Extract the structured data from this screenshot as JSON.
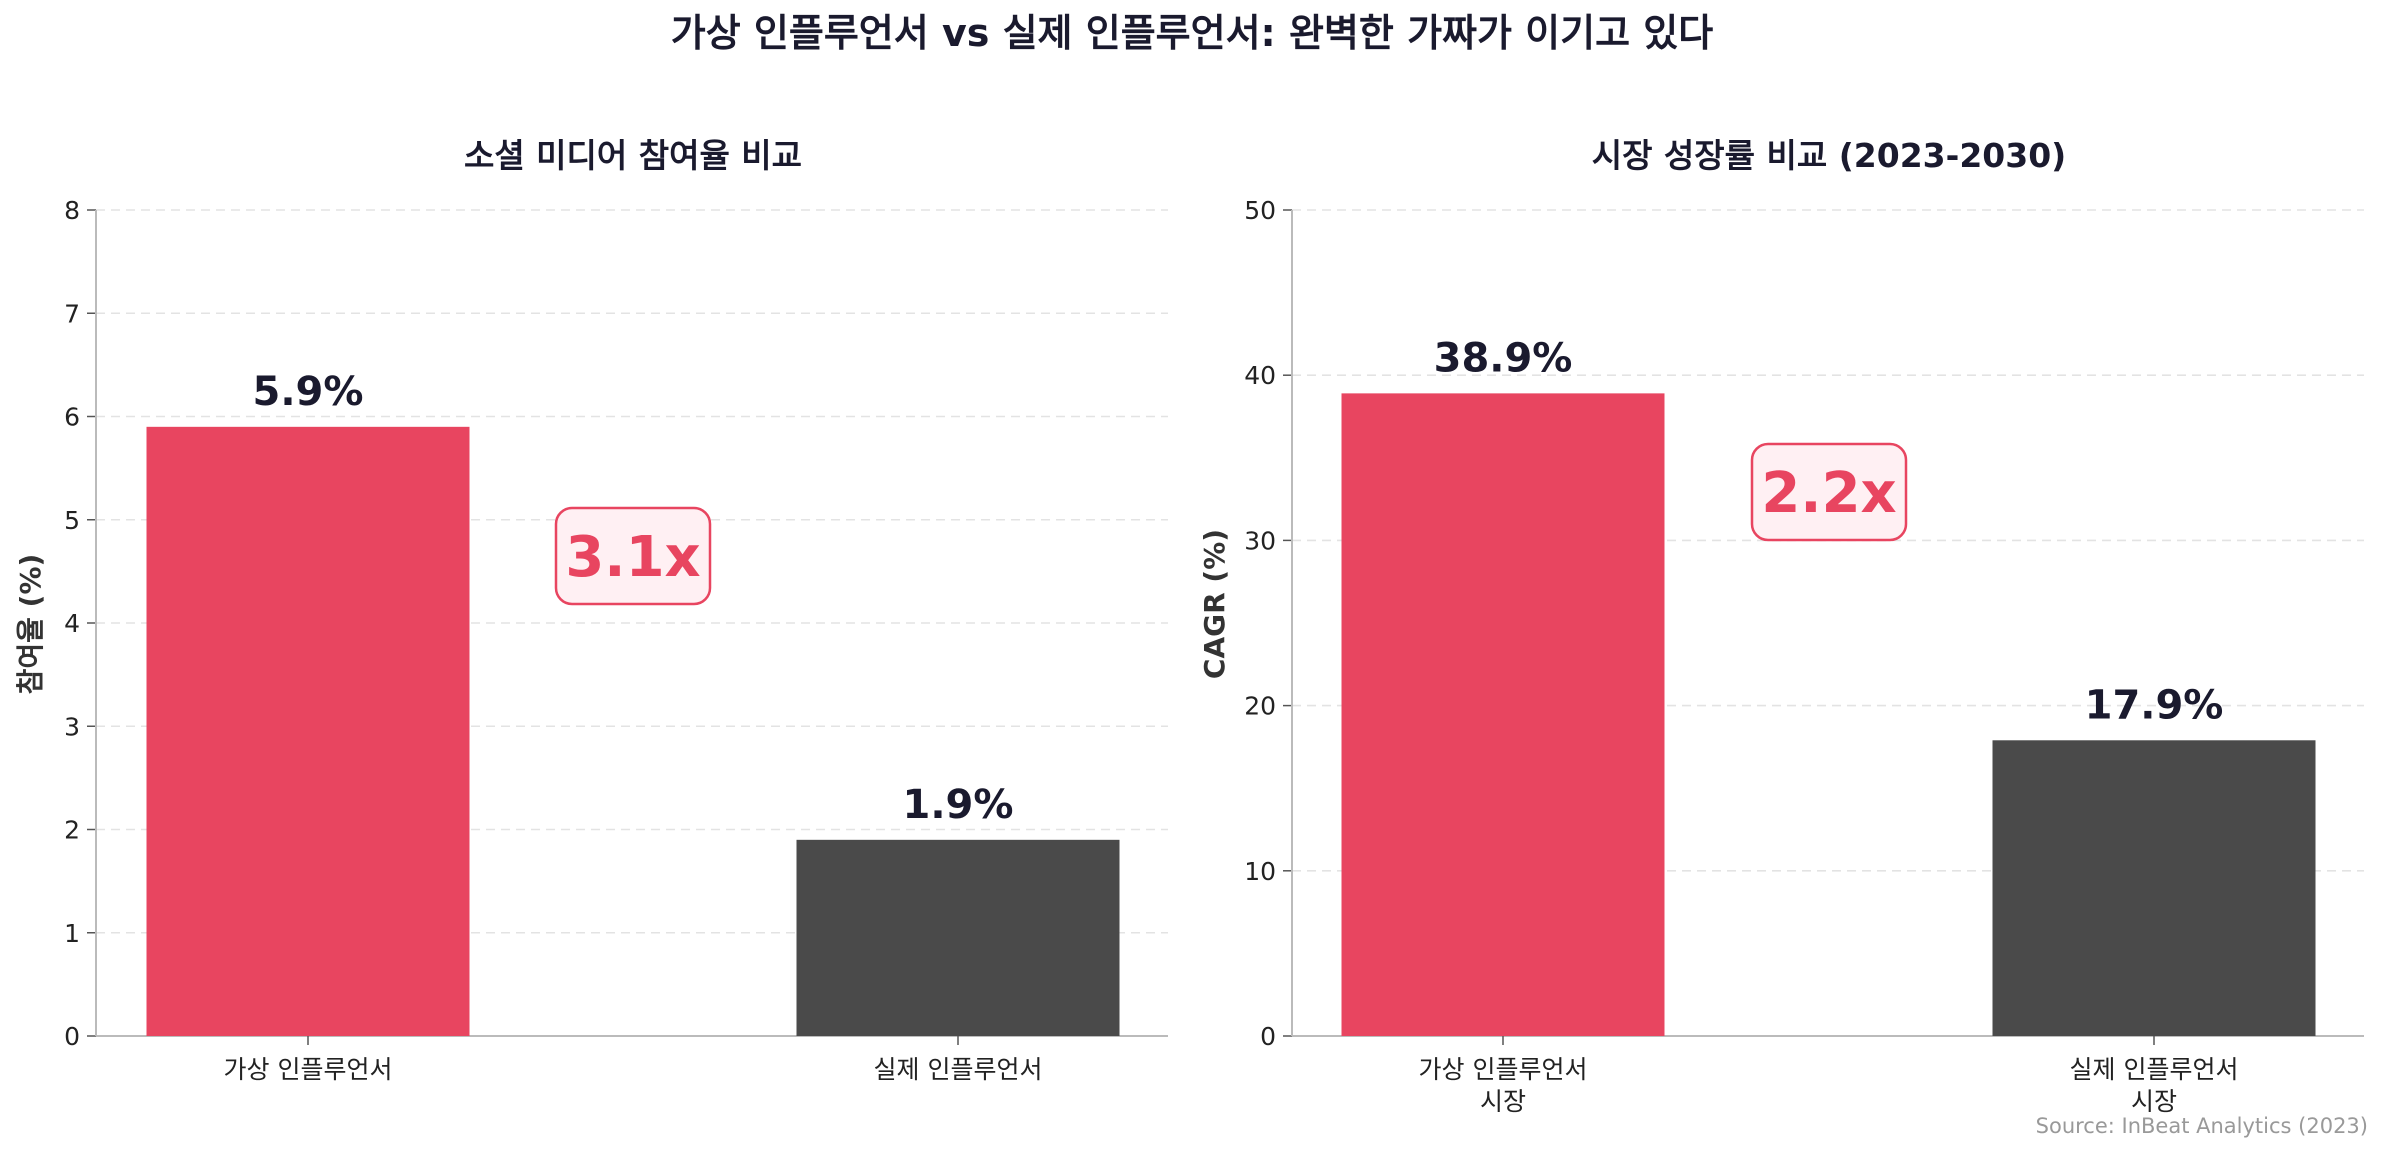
{
  "title": "가상 인플루언서 vs 실제 인플루언서: 완벽한 가짜가 이기고 있다",
  "source": "Source: InBeat Analytics (2023)",
  "colors": {
    "virtual": "#e84560",
    "real": "#4a4a4a",
    "ratio_text": "#e84560",
    "ratio_fill": "#fff0f3"
  },
  "chart_data": [
    {
      "type": "bar",
      "title": "소셜 미디어 참여율 비교",
      "xlabel": "",
      "ylabel": "참여율 (%)",
      "ylim": [
        0,
        8
      ],
      "yticks": [
        0,
        1,
        2,
        3,
        4,
        5,
        6,
        7,
        8
      ],
      "grid": true,
      "categories": [
        [
          "가상 인플루언서"
        ],
        [
          "실제 인플루언서"
        ]
      ],
      "values": [
        5.9,
        1.9
      ],
      "value_labels": [
        "5.9%",
        "1.9%"
      ],
      "annotation": "3.1x"
    },
    {
      "type": "bar",
      "title": "시장 성장률 비교 (2023-2030)",
      "xlabel": "",
      "ylabel": "CAGR (%)",
      "ylim": [
        0,
        50
      ],
      "yticks": [
        0,
        10,
        20,
        30,
        40,
        50
      ],
      "grid": true,
      "categories": [
        [
          "가상 인플루언서",
          "시장"
        ],
        [
          "실제 인플루언서",
          "시장"
        ]
      ],
      "values": [
        38.9,
        17.9
      ],
      "value_labels": [
        "38.9%",
        "17.9%"
      ],
      "annotation": "2.2x"
    }
  ]
}
